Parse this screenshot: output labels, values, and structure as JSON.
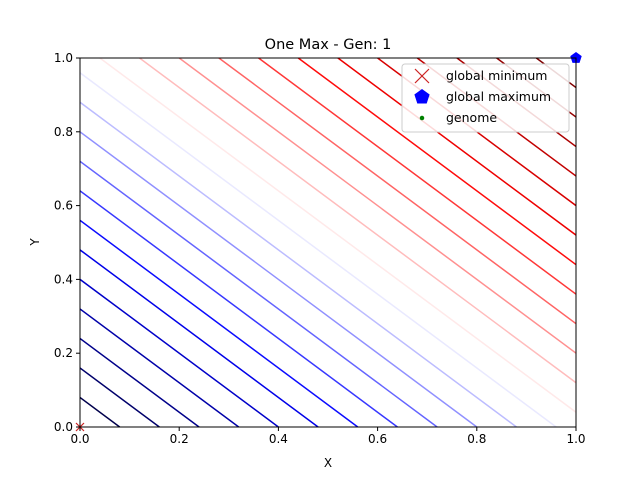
{
  "chart_data": {
    "type": "contour",
    "title": "One Max - Gen: 1",
    "xlabel": "X",
    "ylabel": "Y",
    "xlim": [
      0,
      1
    ],
    "ylim": [
      0,
      1
    ],
    "xticks": [
      "0.0",
      "0.2",
      "0.4",
      "0.6",
      "0.8",
      "1.0"
    ],
    "yticks": [
      "0.0",
      "0.2",
      "0.4",
      "0.6",
      "0.8",
      "1.0"
    ],
    "grid": false,
    "function": "x + y",
    "contour_levels": [
      0.08,
      0.16,
      0.24,
      0.32,
      0.4,
      0.48,
      0.56,
      0.64,
      0.72,
      0.8,
      0.88,
      0.96,
      1.04,
      1.12,
      1.2,
      1.28,
      1.36,
      1.44,
      1.52,
      1.6,
      1.68,
      1.76,
      1.84,
      1.92
    ],
    "colormap": "seismic",
    "legend_position": "top-right",
    "series": [
      {
        "name": "global minimum",
        "marker": "x",
        "color": "#cc2222",
        "points": [
          [
            0,
            0
          ]
        ]
      },
      {
        "name": "global maximum",
        "marker": "pentagon",
        "color": "#0000ff",
        "points": [
          [
            1,
            1
          ]
        ]
      },
      {
        "name": "genome",
        "marker": "dot",
        "color": "#008000",
        "points": []
      }
    ]
  }
}
